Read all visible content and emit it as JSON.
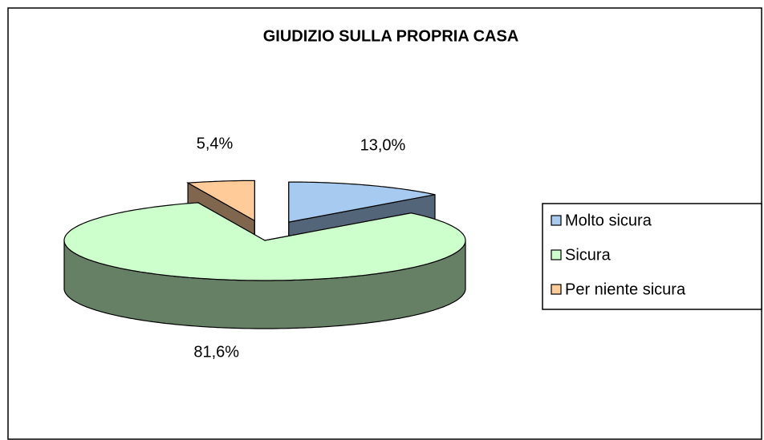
{
  "chart_data": {
    "type": "pie",
    "title": "GIUDIZIO SULLA PROPRIA CASA",
    "categories": [
      "Molto sicura",
      "Sicura",
      "Per niente sicura"
    ],
    "values": [
      13.0,
      81.6,
      5.4
    ],
    "value_labels": [
      "13,0%",
      "81,6%",
      "5,4%"
    ],
    "colors": [
      "#a6caf0",
      "#ccffcc",
      "#ffcc99"
    ],
    "legend": "right"
  }
}
